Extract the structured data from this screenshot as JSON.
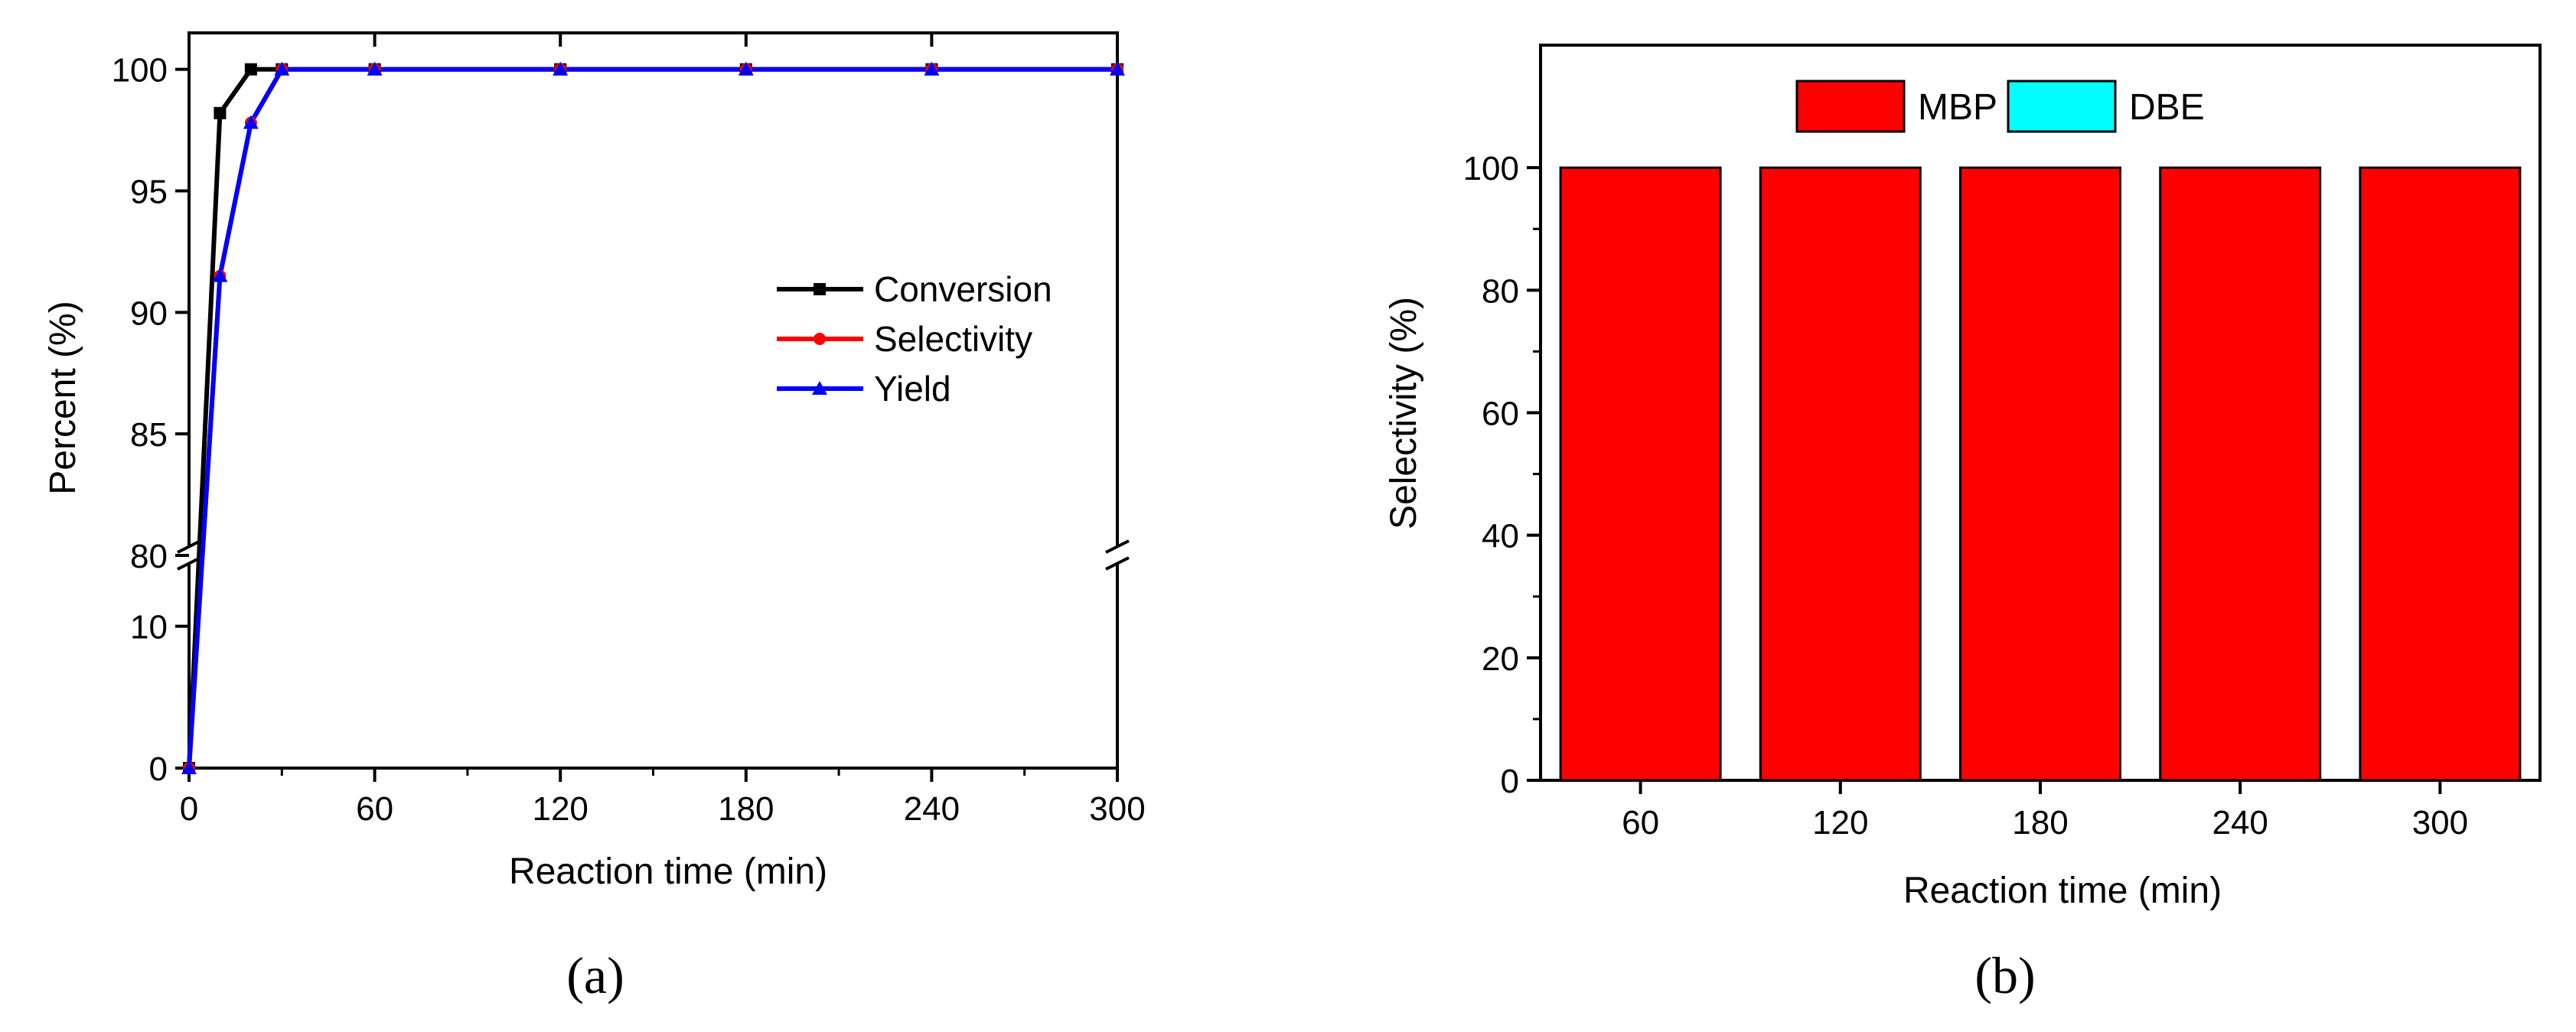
{
  "colors": {
    "axis": "#000000",
    "conversion": "#000000",
    "selectivity": "#ff0000",
    "yield": "#0000ff",
    "mbp": "#ff0000",
    "dbe": "#00ffff",
    "bar_edge": "#000000"
  },
  "chart_data": [
    {
      "id": "a",
      "type": "line",
      "panel_label": "(a)",
      "title": "",
      "xlabel": "Reaction time (min)",
      "ylabel": "Percent (%)",
      "xlim": [
        0,
        300
      ],
      "x_ticks": [
        "0",
        "60",
        "120",
        "180",
        "240",
        "300"
      ],
      "y_axis_break": {
        "lower_range": [
          0,
          15
        ],
        "upper_range": [
          80,
          101.5
        ],
        "lower_ticks": [
          "0",
          "10"
        ],
        "upper_ticks": [
          "80",
          "85",
          "90",
          "95",
          "100"
        ]
      },
      "legend": {
        "position": "center-right"
      },
      "series": [
        {
          "name": "Conversion",
          "color_key": "conversion",
          "marker": "square",
          "x": [
            0,
            10,
            20,
            30,
            60,
            120,
            180,
            240,
            300
          ],
          "y": [
            0,
            98.2,
            100,
            100,
            100,
            100,
            100,
            100,
            100
          ]
        },
        {
          "name": "Selectivity",
          "color_key": "selectivity",
          "marker": "circle",
          "x": [
            0,
            10,
            20,
            30,
            60,
            120,
            180,
            240,
            300
          ],
          "y": [
            0,
            91.5,
            97.8,
            100,
            100,
            100,
            100,
            100,
            100
          ]
        },
        {
          "name": "Yield",
          "color_key": "yield",
          "marker": "triangle",
          "x": [
            0,
            10,
            20,
            30,
            60,
            120,
            180,
            240,
            300
          ],
          "y": [
            0,
            91.5,
            97.8,
            100,
            100,
            100,
            100,
            100,
            100
          ]
        }
      ]
    },
    {
      "id": "b",
      "type": "bar",
      "stacked": true,
      "panel_label": "(b)",
      "title": "",
      "xlabel": "Reaction time (min)",
      "ylabel": "Selectivity (%)",
      "ylim": [
        0,
        120
      ],
      "y_ticks": [
        "0",
        "20",
        "40",
        "60",
        "80",
        "100"
      ],
      "categories": [
        "60",
        "120",
        "180",
        "240",
        "300"
      ],
      "legend": {
        "position": "top-center"
      },
      "series": [
        {
          "name": "MBP",
          "color_key": "mbp",
          "values": [
            100,
            100,
            100,
            100,
            100
          ]
        },
        {
          "name": "DBE",
          "color_key": "dbe",
          "values": [
            0,
            0,
            0,
            0,
            0
          ]
        }
      ]
    }
  ]
}
